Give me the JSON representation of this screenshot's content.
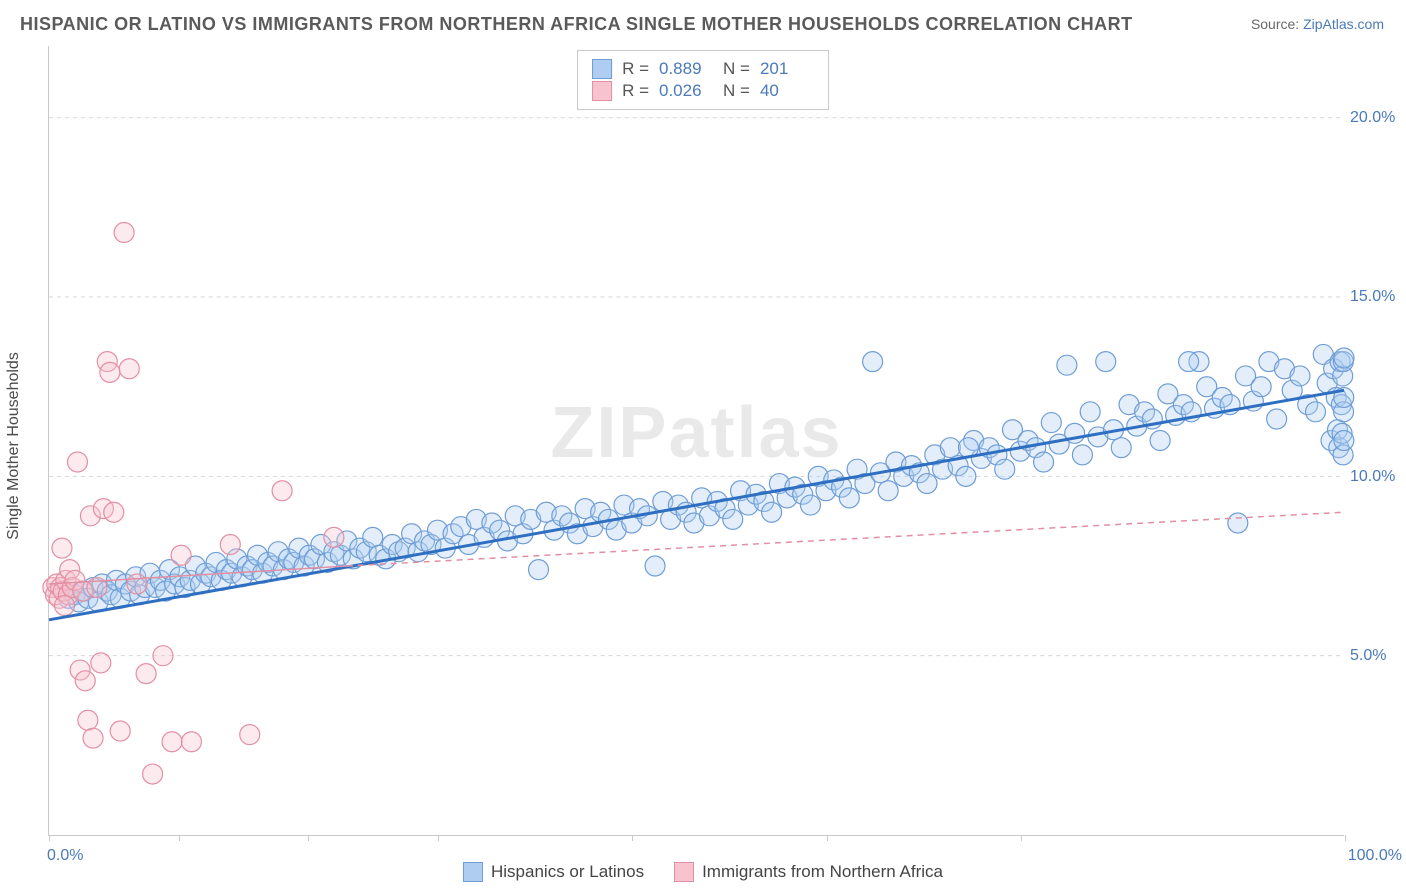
{
  "title": "HISPANIC OR LATINO VS IMMIGRANTS FROM NORTHERN AFRICA SINGLE MOTHER HOUSEHOLDS CORRELATION CHART",
  "source_label": "Source:",
  "source_value": "ZipAtlas.com",
  "ylabel": "Single Mother Households",
  "watermark": "ZIPatlas",
  "chart": {
    "type": "scatter",
    "xlim": [
      0,
      100
    ],
    "ylim": [
      0,
      22
    ],
    "x_tick_positions": [
      0,
      10,
      20,
      30,
      45,
      60,
      75,
      100
    ],
    "x_min_label": "0.0%",
    "x_max_label": "100.0%",
    "y_ticks": [
      {
        "v": 5.0,
        "label": "5.0%"
      },
      {
        "v": 10.0,
        "label": "10.0%"
      },
      {
        "v": 15.0,
        "label": "15.0%"
      },
      {
        "v": 20.0,
        "label": "20.0%"
      }
    ],
    "grid_color": "#d6d6d6",
    "axis_color": "#c9c9c9",
    "background_color": "#ffffff",
    "marker_radius": 10,
    "marker_stroke_width": 1.2,
    "marker_fill_opacity": 0.35,
    "series": [
      {
        "name": "Hispanics or Latinos",
        "color_fill": "#aecdf0",
        "color_stroke": "#6f9dd6",
        "r": 0.889,
        "n": 201,
        "trend": {
          "solid": {
            "x1": 0,
            "y1": 6.0,
            "x2": 100,
            "y2": 12.4
          },
          "color": "#2f6fc2",
          "width": 3
        },
        "points": [
          [
            1.5,
            6.6
          ],
          [
            2.0,
            6.7
          ],
          [
            2.3,
            6.5
          ],
          [
            2.7,
            6.8
          ],
          [
            3.0,
            6.6
          ],
          [
            3.4,
            6.9
          ],
          [
            3.8,
            6.5
          ],
          [
            4.1,
            7.0
          ],
          [
            4.5,
            6.8
          ],
          [
            4.8,
            6.7
          ],
          [
            5.2,
            7.1
          ],
          [
            5.5,
            6.6
          ],
          [
            5.9,
            7.0
          ],
          [
            6.3,
            6.8
          ],
          [
            6.7,
            7.2
          ],
          [
            7.0,
            6.7
          ],
          [
            7.4,
            6.9
          ],
          [
            7.8,
            7.3
          ],
          [
            8.2,
            6.9
          ],
          [
            8.6,
            7.1
          ],
          [
            9.0,
            6.8
          ],
          [
            9.3,
            7.4
          ],
          [
            9.7,
            7.0
          ],
          [
            10.1,
            7.2
          ],
          [
            10.5,
            6.9
          ],
          [
            10.9,
            7.1
          ],
          [
            11.3,
            7.5
          ],
          [
            11.7,
            7.0
          ],
          [
            12.1,
            7.3
          ],
          [
            12.5,
            7.2
          ],
          [
            12.9,
            7.6
          ],
          [
            13.3,
            7.1
          ],
          [
            13.7,
            7.4
          ],
          [
            14.1,
            7.3
          ],
          [
            14.5,
            7.7
          ],
          [
            14.9,
            7.2
          ],
          [
            15.3,
            7.5
          ],
          [
            15.7,
            7.4
          ],
          [
            16.1,
            7.8
          ],
          [
            16.5,
            7.3
          ],
          [
            16.9,
            7.6
          ],
          [
            17.3,
            7.5
          ],
          [
            17.7,
            7.9
          ],
          [
            18.1,
            7.4
          ],
          [
            18.5,
            7.7
          ],
          [
            18.9,
            7.6
          ],
          [
            19.3,
            8.0
          ],
          [
            19.7,
            7.5
          ],
          [
            20.1,
            7.8
          ],
          [
            20.5,
            7.7
          ],
          [
            21.0,
            8.1
          ],
          [
            21.5,
            7.6
          ],
          [
            22.0,
            7.9
          ],
          [
            22.5,
            7.8
          ],
          [
            23.0,
            8.2
          ],
          [
            23.5,
            7.7
          ],
          [
            24.0,
            8.0
          ],
          [
            24.5,
            7.9
          ],
          [
            25.0,
            8.3
          ],
          [
            25.5,
            7.8
          ],
          [
            26.0,
            7.7
          ],
          [
            26.5,
            8.1
          ],
          [
            27.0,
            7.9
          ],
          [
            27.5,
            8.0
          ],
          [
            28.0,
            8.4
          ],
          [
            28.5,
            7.9
          ],
          [
            29.0,
            8.2
          ],
          [
            29.5,
            8.1
          ],
          [
            30.0,
            8.5
          ],
          [
            30.6,
            8.0
          ],
          [
            31.2,
            8.4
          ],
          [
            31.8,
            8.6
          ],
          [
            32.4,
            8.1
          ],
          [
            33.0,
            8.8
          ],
          [
            33.6,
            8.3
          ],
          [
            34.2,
            8.7
          ],
          [
            34.8,
            8.5
          ],
          [
            35.4,
            8.2
          ],
          [
            36.0,
            8.9
          ],
          [
            36.6,
            8.4
          ],
          [
            37.2,
            8.8
          ],
          [
            37.8,
            7.4
          ],
          [
            38.4,
            9.0
          ],
          [
            39.0,
            8.5
          ],
          [
            39.6,
            8.9
          ],
          [
            40.2,
            8.7
          ],
          [
            40.8,
            8.4
          ],
          [
            41.4,
            9.1
          ],
          [
            42.0,
            8.6
          ],
          [
            42.6,
            9.0
          ],
          [
            43.2,
            8.8
          ],
          [
            43.8,
            8.5
          ],
          [
            44.4,
            9.2
          ],
          [
            45.0,
            8.7
          ],
          [
            45.6,
            9.1
          ],
          [
            46.2,
            8.9
          ],
          [
            46.8,
            7.5
          ],
          [
            47.4,
            9.3
          ],
          [
            48.0,
            8.8
          ],
          [
            48.6,
            9.2
          ],
          [
            49.2,
            9.0
          ],
          [
            49.8,
            8.7
          ],
          [
            50.4,
            9.4
          ],
          [
            51.0,
            8.9
          ],
          [
            51.6,
            9.3
          ],
          [
            52.2,
            9.1
          ],
          [
            52.8,
            8.8
          ],
          [
            53.4,
            9.6
          ],
          [
            54.0,
            9.2
          ],
          [
            54.6,
            9.5
          ],
          [
            55.2,
            9.3
          ],
          [
            55.8,
            9.0
          ],
          [
            56.4,
            9.8
          ],
          [
            57.0,
            9.4
          ],
          [
            57.6,
            9.7
          ],
          [
            58.2,
            9.5
          ],
          [
            58.8,
            9.2
          ],
          [
            59.4,
            10.0
          ],
          [
            60.0,
            9.6
          ],
          [
            60.6,
            9.9
          ],
          [
            61.2,
            9.7
          ],
          [
            61.8,
            9.4
          ],
          [
            62.4,
            10.2
          ],
          [
            63.0,
            9.8
          ],
          [
            63.6,
            13.2
          ],
          [
            64.2,
            10.1
          ],
          [
            64.8,
            9.6
          ],
          [
            65.4,
            10.4
          ],
          [
            66.0,
            10.0
          ],
          [
            66.6,
            10.3
          ],
          [
            67.2,
            10.1
          ],
          [
            67.8,
            9.8
          ],
          [
            68.4,
            10.6
          ],
          [
            69.0,
            10.2
          ],
          [
            69.6,
            10.8
          ],
          [
            70.2,
            10.3
          ],
          [
            70.8,
            10.0
          ],
          [
            71.4,
            11.0
          ],
          [
            72.0,
            10.5
          ],
          [
            72.6,
            10.8
          ],
          [
            73.2,
            10.6
          ],
          [
            73.8,
            10.2
          ],
          [
            74.4,
            11.3
          ],
          [
            75.0,
            10.7
          ],
          [
            75.6,
            11.0
          ],
          [
            76.2,
            10.8
          ],
          [
            76.8,
            10.4
          ],
          [
            77.4,
            11.5
          ],
          [
            78.0,
            10.9
          ],
          [
            78.6,
            13.1
          ],
          [
            79.2,
            11.2
          ],
          [
            79.8,
            10.6
          ],
          [
            80.4,
            11.8
          ],
          [
            81.0,
            11.1
          ],
          [
            81.6,
            13.2
          ],
          [
            82.2,
            11.3
          ],
          [
            82.8,
            10.8
          ],
          [
            83.4,
            12.0
          ],
          [
            84.0,
            11.4
          ],
          [
            84.6,
            11.8
          ],
          [
            85.2,
            11.6
          ],
          [
            85.8,
            11.0
          ],
          [
            86.4,
            12.3
          ],
          [
            87.0,
            11.7
          ],
          [
            87.6,
            12.0
          ],
          [
            88.2,
            11.8
          ],
          [
            88.8,
            13.2
          ],
          [
            89.4,
            12.5
          ],
          [
            90.0,
            11.9
          ],
          [
            90.6,
            12.2
          ],
          [
            91.2,
            12.0
          ],
          [
            91.8,
            8.7
          ],
          [
            92.4,
            12.8
          ],
          [
            93.0,
            12.1
          ],
          [
            93.6,
            12.5
          ],
          [
            94.2,
            13.2
          ],
          [
            94.8,
            11.6
          ],
          [
            95.4,
            13.0
          ],
          [
            96.0,
            12.4
          ],
          [
            96.6,
            12.8
          ],
          [
            97.2,
            12.0
          ],
          [
            97.8,
            11.8
          ],
          [
            98.4,
            13.4
          ],
          [
            98.7,
            12.6
          ],
          [
            99.0,
            11.0
          ],
          [
            99.2,
            13.0
          ],
          [
            99.4,
            12.2
          ],
          [
            99.5,
            11.3
          ],
          [
            99.6,
            10.8
          ],
          [
            99.7,
            13.2
          ],
          [
            99.8,
            12.0
          ],
          [
            99.85,
            11.2
          ],
          [
            99.9,
            12.8
          ],
          [
            99.93,
            10.6
          ],
          [
            99.95,
            13.2
          ],
          [
            99.97,
            11.8
          ],
          [
            99.98,
            12.2
          ],
          [
            99.99,
            11.0
          ],
          [
            100.0,
            13.3
          ],
          [
            88.0,
            13.2
          ],
          [
            71.0,
            10.8
          ]
        ]
      },
      {
        "name": "Immigrants from Northern Africa",
        "color_fill": "#f6c3ce",
        "color_stroke": "#e38fa3",
        "r": 0.026,
        "n": 40,
        "trend": {
          "solid": {
            "x1": 0,
            "y1": 7.0,
            "x2": 23,
            "y2": 7.5
          },
          "dashed": {
            "x1": 23,
            "y1": 7.5,
            "x2": 100,
            "y2": 9.0
          },
          "color": "#e38fa3",
          "width": 1.5
        },
        "points": [
          [
            0.3,
            6.9
          ],
          [
            0.5,
            6.7
          ],
          [
            0.6,
            7.0
          ],
          [
            0.8,
            6.6
          ],
          [
            0.9,
            6.9
          ],
          [
            1.0,
            8.0
          ],
          [
            1.1,
            6.8
          ],
          [
            1.3,
            7.1
          ],
          [
            1.5,
            6.7
          ],
          [
            1.6,
            7.4
          ],
          [
            1.8,
            6.9
          ],
          [
            2.0,
            7.1
          ],
          [
            1.2,
            6.4
          ],
          [
            2.2,
            10.4
          ],
          [
            2.4,
            4.6
          ],
          [
            2.6,
            6.8
          ],
          [
            2.8,
            4.3
          ],
          [
            3.0,
            3.2
          ],
          [
            3.2,
            8.9
          ],
          [
            3.4,
            2.7
          ],
          [
            3.7,
            6.9
          ],
          [
            4.0,
            4.8
          ],
          [
            4.2,
            9.1
          ],
          [
            4.5,
            13.2
          ],
          [
            4.7,
            12.9
          ],
          [
            5.0,
            9.0
          ],
          [
            5.5,
            2.9
          ],
          [
            5.8,
            16.8
          ],
          [
            6.2,
            13.0
          ],
          [
            6.8,
            7.0
          ],
          [
            7.5,
            4.5
          ],
          [
            8.0,
            1.7
          ],
          [
            8.8,
            5.0
          ],
          [
            9.5,
            2.6
          ],
          [
            10.2,
            7.8
          ],
          [
            11.0,
            2.6
          ],
          [
            14.0,
            8.1
          ],
          [
            15.5,
            2.8
          ],
          [
            18.0,
            9.6
          ],
          [
            22.0,
            8.3
          ]
        ]
      }
    ]
  },
  "legend_top": {
    "rows": [
      {
        "swatch": "blue",
        "r_label": "R =",
        "r_val": "0.889",
        "n_label": "N =",
        "n_val": "201"
      },
      {
        "swatch": "pink",
        "r_label": "R =",
        "r_val": "0.026",
        "n_label": "N =",
        "n_val": "40"
      }
    ]
  },
  "legend_bottom": {
    "items": [
      {
        "swatch": "blue",
        "label": "Hispanics or Latinos"
      },
      {
        "swatch": "pink",
        "label": "Immigrants from Northern Africa"
      }
    ]
  }
}
